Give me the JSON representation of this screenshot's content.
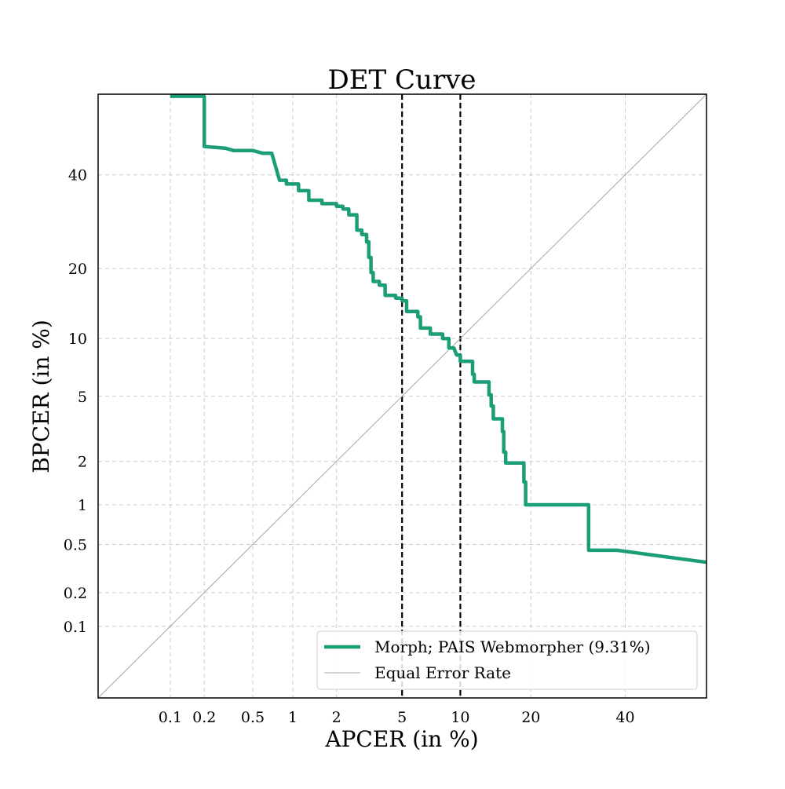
{
  "chart_data": {
    "type": "line",
    "title": "DET Curve",
    "xlabel": "APCER (in %)",
    "ylabel": "BPCER (in %)",
    "xscale": "probit",
    "yscale": "probit",
    "xlim": [
      0.02,
      60
    ],
    "ylim": [
      0.02,
      60
    ],
    "grid": true,
    "x_ticks": [
      {
        "value": 0.1,
        "label": "0.1"
      },
      {
        "value": 0.2,
        "label": "0.2"
      },
      {
        "value": 0.5,
        "label": "0.5"
      },
      {
        "value": 1,
        "label": "1"
      },
      {
        "value": 2,
        "label": "2"
      },
      {
        "value": 5,
        "label": "5"
      },
      {
        "value": 10,
        "label": "10"
      },
      {
        "value": 20,
        "label": "20"
      },
      {
        "value": 40,
        "label": "40"
      }
    ],
    "y_ticks": [
      {
        "value": 0.1,
        "label": "0.1"
      },
      {
        "value": 0.2,
        "label": "0.2"
      },
      {
        "value": 0.5,
        "label": "0.5"
      },
      {
        "value": 1,
        "label": "1"
      },
      {
        "value": 2,
        "label": "2"
      },
      {
        "value": 5,
        "label": "5"
      },
      {
        "value": 10,
        "label": "10"
      },
      {
        "value": 20,
        "label": "20"
      },
      {
        "value": 40,
        "label": "40"
      }
    ],
    "vertical_lines": [
      {
        "x": 5,
        "style": "dashed",
        "color": "#000000"
      },
      {
        "x": 10,
        "style": "dashed",
        "color": "#000000"
      }
    ],
    "legend_position": "bottom-right",
    "series": [
      {
        "name": "Morph; PAIS Webmorpher (9.31%)",
        "color": "#1b9e77",
        "style": "solid",
        "points": [
          [
            0.1,
            59.5
          ],
          [
            0.2,
            59.5
          ],
          [
            0.2,
            47.0
          ],
          [
            0.3,
            46.6
          ],
          [
            0.35,
            46.0
          ],
          [
            0.5,
            46.0
          ],
          [
            0.6,
            45.3
          ],
          [
            0.7,
            45.3
          ],
          [
            0.8,
            38.7
          ],
          [
            0.9,
            38.7
          ],
          [
            0.9,
            37.8
          ],
          [
            1.1,
            37.8
          ],
          [
            1.1,
            36.2
          ],
          [
            1.3,
            36.2
          ],
          [
            1.3,
            34.0
          ],
          [
            1.6,
            34.0
          ],
          [
            1.6,
            33.2
          ],
          [
            2.0,
            33.2
          ],
          [
            2.0,
            32.6
          ],
          [
            2.2,
            32.6
          ],
          [
            2.2,
            32.0
          ],
          [
            2.4,
            32.0
          ],
          [
            2.4,
            30.7
          ],
          [
            2.7,
            30.7
          ],
          [
            2.7,
            27.4
          ],
          [
            2.9,
            27.4
          ],
          [
            2.9,
            26.5
          ],
          [
            3.1,
            26.5
          ],
          [
            3.1,
            25.0
          ],
          [
            3.2,
            25.0
          ],
          [
            3.2,
            22.0
          ],
          [
            3.3,
            22.0
          ],
          [
            3.3,
            19.3
          ],
          [
            3.4,
            19.3
          ],
          [
            3.4,
            17.8
          ],
          [
            3.7,
            17.8
          ],
          [
            3.7,
            17.2
          ],
          [
            4.0,
            17.2
          ],
          [
            4.0,
            15.6
          ],
          [
            4.6,
            15.6
          ],
          [
            4.6,
            15.2
          ],
          [
            5.0,
            15.2
          ],
          [
            5.0,
            14.8
          ],
          [
            5.3,
            14.8
          ],
          [
            5.3,
            13.3
          ],
          [
            6.1,
            13.3
          ],
          [
            6.1,
            12.6
          ],
          [
            6.3,
            12.6
          ],
          [
            6.3,
            11.2
          ],
          [
            7.1,
            11.2
          ],
          [
            7.1,
            10.5
          ],
          [
            8.2,
            10.5
          ],
          [
            8.2,
            10.0
          ],
          [
            8.8,
            10.0
          ],
          [
            8.8,
            9.0
          ],
          [
            9.3,
            9.0
          ],
          [
            9.6,
            8.3
          ],
          [
            10.0,
            8.3
          ],
          [
            10.0,
            7.7
          ],
          [
            11.4,
            7.7
          ],
          [
            11.4,
            6.6
          ],
          [
            11.6,
            6.6
          ],
          [
            11.6,
            6.0
          ],
          [
            13.5,
            6.0
          ],
          [
            13.5,
            5.1
          ],
          [
            13.8,
            5.1
          ],
          [
            13.8,
            4.4
          ],
          [
            14.1,
            4.4
          ],
          [
            14.1,
            3.7
          ],
          [
            15.4,
            3.7
          ],
          [
            15.4,
            3.1
          ],
          [
            15.6,
            3.1
          ],
          [
            15.6,
            2.3
          ],
          [
            15.9,
            2.3
          ],
          [
            15.9,
            1.95
          ],
          [
            18.8,
            1.95
          ],
          [
            18.8,
            1.45
          ],
          [
            19.1,
            1.45
          ],
          [
            19.1,
            1.0
          ],
          [
            31.5,
            1.0
          ],
          [
            31.5,
            0.45
          ],
          [
            38.0,
            0.45
          ],
          [
            60.0,
            0.36
          ]
        ]
      },
      {
        "name": "Equal Error Rate",
        "color": "#a6a6a6",
        "style": "solid",
        "points": [
          [
            0.02,
            0.02
          ],
          [
            60.0,
            60.0
          ]
        ]
      }
    ]
  }
}
